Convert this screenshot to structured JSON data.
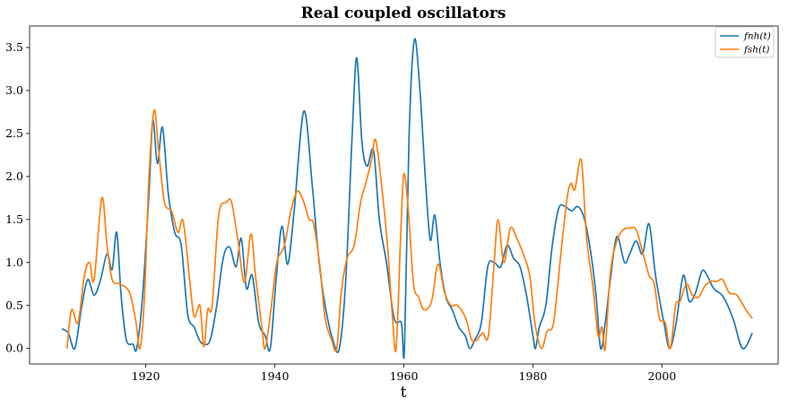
{
  "chart_data": {
    "type": "line",
    "title": "Real coupled oscillators",
    "xlabel": "t",
    "ylabel": "",
    "xlim": [
      1902,
      2018
    ],
    "ylim": [
      -0.18,
      3.75
    ],
    "xticks": [
      1920,
      1940,
      1960,
      1980,
      2000
    ],
    "yticks": [
      0.0,
      0.5,
      1.0,
      1.5,
      2.0,
      2.5,
      3.0,
      3.5
    ],
    "grid": false,
    "legend_position": "top-right",
    "series": [
      {
        "name": "fnh(t)",
        "color": "#1f77b4",
        "points": [
          [
            1907,
            0.23
          ],
          [
            1908,
            0.18
          ],
          [
            1909,
            0.0
          ],
          [
            1910,
            0.45
          ],
          [
            1911,
            0.8
          ],
          [
            1912,
            0.62
          ],
          [
            1913,
            0.8
          ],
          [
            1914,
            1.1
          ],
          [
            1914.8,
            0.92
          ],
          [
            1915.5,
            1.35
          ],
          [
            1916.2,
            0.6
          ],
          [
            1917,
            0.1
          ],
          [
            1918,
            0.05
          ],
          [
            1918.6,
            0.0
          ],
          [
            1919.5,
            0.6
          ],
          [
            1920.5,
            1.8
          ],
          [
            1921.1,
            2.65
          ],
          [
            1921.8,
            2.15
          ],
          [
            1922.6,
            2.57
          ],
          [
            1923.5,
            1.8
          ],
          [
            1924.5,
            1.35
          ],
          [
            1925.5,
            1.2
          ],
          [
            1926.5,
            0.4
          ],
          [
            1927.5,
            0.25
          ],
          [
            1928.3,
            0.1
          ],
          [
            1929,
            0.05
          ],
          [
            1930,
            0.1
          ],
          [
            1931,
            0.5
          ],
          [
            1932,
            1.05
          ],
          [
            1933,
            1.18
          ],
          [
            1934,
            0.95
          ],
          [
            1934.8,
            1.28
          ],
          [
            1935.6,
            0.7
          ],
          [
            1936.5,
            0.85
          ],
          [
            1937.5,
            0.3
          ],
          [
            1938.5,
            0.15
          ],
          [
            1939.3,
            0.0
          ],
          [
            1940.2,
            0.8
          ],
          [
            1941.1,
            1.42
          ],
          [
            1942,
            0.98
          ],
          [
            1943,
            1.6
          ],
          [
            1944.5,
            2.76
          ],
          [
            1945.8,
            1.9
          ],
          [
            1946.8,
            1.05
          ],
          [
            1947.8,
            0.5
          ],
          [
            1949,
            0.1
          ],
          [
            1950,
            0.0
          ],
          [
            1951,
            0.8
          ],
          [
            1952,
            2.5
          ],
          [
            1952.7,
            3.38
          ],
          [
            1953.5,
            2.4
          ],
          [
            1954.3,
            2.12
          ],
          [
            1955.3,
            2.3
          ],
          [
            1956.2,
            1.5
          ],
          [
            1957.3,
            1.0
          ],
          [
            1958.5,
            0.35
          ],
          [
            1959.6,
            0.3
          ],
          [
            1960.1,
            0.0
          ],
          [
            1960.8,
            2.45
          ],
          [
            1961.6,
            3.58
          ],
          [
            1962.4,
            3.1
          ],
          [
            1963.4,
            1.9
          ],
          [
            1964.1,
            1.26
          ],
          [
            1964.8,
            1.55
          ],
          [
            1965.6,
            1.0
          ],
          [
            1966.5,
            0.6
          ],
          [
            1967.5,
            0.45
          ],
          [
            1968.5,
            0.25
          ],
          [
            1969.5,
            0.15
          ],
          [
            1970.2,
            0.0
          ],
          [
            1971,
            0.1
          ],
          [
            1972,
            0.3
          ],
          [
            1973,
            0.95
          ],
          [
            1974,
            1.0
          ],
          [
            1975,
            0.95
          ],
          [
            1976,
            1.2
          ],
          [
            1977,
            1.05
          ],
          [
            1978,
            0.95
          ],
          [
            1979,
            0.62
          ],
          [
            1980,
            0.15
          ],
          [
            1980.4,
            0.0
          ],
          [
            1981,
            0.25
          ],
          [
            1982,
            0.5
          ],
          [
            1983,
            1.2
          ],
          [
            1984,
            1.63
          ],
          [
            1985,
            1.65
          ],
          [
            1986,
            1.6
          ],
          [
            1987,
            1.65
          ],
          [
            1988,
            1.5
          ],
          [
            1989,
            1.1
          ],
          [
            1989.8,
            0.6
          ],
          [
            1990.5,
            0.0
          ],
          [
            1991.2,
            0.3
          ],
          [
            1992,
            0.8
          ],
          [
            1993,
            1.3
          ],
          [
            1994.2,
            1.0
          ],
          [
            1995,
            1.1
          ],
          [
            1996,
            1.25
          ],
          [
            1997,
            1.1
          ],
          [
            1998,
            1.45
          ],
          [
            1999,
            0.85
          ],
          [
            2000.3,
            0.3
          ],
          [
            2001.2,
            0.0
          ],
          [
            2002.2,
            0.3
          ],
          [
            2003.3,
            0.85
          ],
          [
            2004.2,
            0.55
          ],
          [
            2005.2,
            0.65
          ],
          [
            2006.2,
            0.9
          ],
          [
            2007,
            0.85
          ],
          [
            2008,
            0.7
          ],
          [
            2009.5,
            0.6
          ],
          [
            2011,
            0.35
          ],
          [
            2012.5,
            0.0
          ],
          [
            2014,
            0.18
          ]
        ]
      },
      {
        "name": "fsh(t)",
        "color": "#ff7f0e",
        "points": [
          [
            1907.8,
            0.0
          ],
          [
            1908.5,
            0.45
          ],
          [
            1909.5,
            0.3
          ],
          [
            1910.5,
            0.85
          ],
          [
            1911.3,
            1.0
          ],
          [
            1912,
            0.8
          ],
          [
            1913.2,
            1.75
          ],
          [
            1914,
            1.2
          ],
          [
            1914.8,
            0.8
          ],
          [
            1916,
            0.75
          ],
          [
            1917.5,
            0.65
          ],
          [
            1918.5,
            0.3
          ],
          [
            1919.1,
            0.0
          ],
          [
            1919.8,
            0.6
          ],
          [
            1920.5,
            2.0
          ],
          [
            1921.3,
            2.77
          ],
          [
            1922,
            2.3
          ],
          [
            1922.9,
            1.7
          ],
          [
            1924,
            1.6
          ],
          [
            1925,
            1.35
          ],
          [
            1925.8,
            1.48
          ],
          [
            1926.8,
            0.8
          ],
          [
            1927.5,
            0.37
          ],
          [
            1928.4,
            0.5
          ],
          [
            1929,
            0.02
          ],
          [
            1929.6,
            0.45
          ],
          [
            1930.3,
            0.5
          ],
          [
            1931.3,
            1.55
          ],
          [
            1932.5,
            1.7
          ],
          [
            1933.3,
            1.7
          ],
          [
            1934.3,
            1.25
          ],
          [
            1935.3,
            0.77
          ],
          [
            1936.3,
            1.33
          ],
          [
            1937,
            0.85
          ],
          [
            1938,
            0.25
          ],
          [
            1938.5,
            0.0
          ],
          [
            1939.4,
            0.45
          ],
          [
            1940.3,
            1.0
          ],
          [
            1941.5,
            1.2
          ],
          [
            1942.5,
            1.6
          ],
          [
            1943.5,
            1.83
          ],
          [
            1944.5,
            1.7
          ],
          [
            1945.3,
            1.5
          ],
          [
            1946,
            1.45
          ],
          [
            1947,
            0.95
          ],
          [
            1947.8,
            0.35
          ],
          [
            1948.8,
            0.1
          ],
          [
            1949.6,
            0.0
          ],
          [
            1950.3,
            0.65
          ],
          [
            1951.2,
            1.05
          ],
          [
            1952.3,
            1.2
          ],
          [
            1953.3,
            1.7
          ],
          [
            1954.2,
            1.95
          ],
          [
            1955,
            2.2
          ],
          [
            1955.6,
            2.43
          ],
          [
            1956.4,
            2.0
          ],
          [
            1957.4,
            1.25
          ],
          [
            1958.2,
            0.4
          ],
          [
            1958.8,
            0.0
          ],
          [
            1959.5,
            1.3
          ],
          [
            1960,
            2.03
          ],
          [
            1960.7,
            1.6
          ],
          [
            1961.5,
            0.75
          ],
          [
            1962.3,
            0.6
          ],
          [
            1963.1,
            0.45
          ],
          [
            1964.3,
            0.55
          ],
          [
            1965.3,
            0.98
          ],
          [
            1966.3,
            0.65
          ],
          [
            1967.3,
            0.5
          ],
          [
            1968.3,
            0.5
          ],
          [
            1969.6,
            0.35
          ],
          [
            1970.5,
            0.1
          ],
          [
            1971.3,
            0.1
          ],
          [
            1972.2,
            0.18
          ],
          [
            1973.1,
            0.15
          ],
          [
            1974,
            1.0
          ],
          [
            1974.6,
            1.5
          ],
          [
            1975.5,
            1.0
          ],
          [
            1976.5,
            1.4
          ],
          [
            1977.5,
            1.28
          ],
          [
            1978.5,
            1.1
          ],
          [
            1979.5,
            0.85
          ],
          [
            1980.3,
            0.3
          ],
          [
            1981.3,
            0.0
          ],
          [
            1982.2,
            0.2
          ],
          [
            1983.2,
            0.3
          ],
          [
            1984.3,
            1.08
          ],
          [
            1985.3,
            1.75
          ],
          [
            1985.9,
            1.92
          ],
          [
            1986.5,
            1.85
          ],
          [
            1987.5,
            2.19
          ],
          [
            1988.3,
            1.3
          ],
          [
            1989.3,
            0.72
          ],
          [
            1990.1,
            0.15
          ],
          [
            1990.7,
            0.25
          ],
          [
            1991.2,
            0.0
          ],
          [
            1992,
            0.88
          ],
          [
            1993,
            1.25
          ],
          [
            1994,
            1.38
          ],
          [
            1995,
            1.4
          ],
          [
            1996,
            1.38
          ],
          [
            1997,
            1.12
          ],
          [
            1998,
            0.85
          ],
          [
            1998.8,
            0.75
          ],
          [
            1999.6,
            0.35
          ],
          [
            2000.5,
            0.3
          ],
          [
            2001.3,
            0.0
          ],
          [
            2002.1,
            0.5
          ],
          [
            2002.8,
            0.55
          ],
          [
            2003.8,
            0.75
          ],
          [
            2004.7,
            0.62
          ],
          [
            2005.7,
            0.6
          ],
          [
            2006.6,
            0.72
          ],
          [
            2007.5,
            0.78
          ],
          [
            2008.5,
            0.78
          ],
          [
            2009.4,
            0.8
          ],
          [
            2010.4,
            0.65
          ],
          [
            2011.6,
            0.62
          ],
          [
            2013,
            0.45
          ],
          [
            2014,
            0.35
          ]
        ]
      }
    ]
  }
}
